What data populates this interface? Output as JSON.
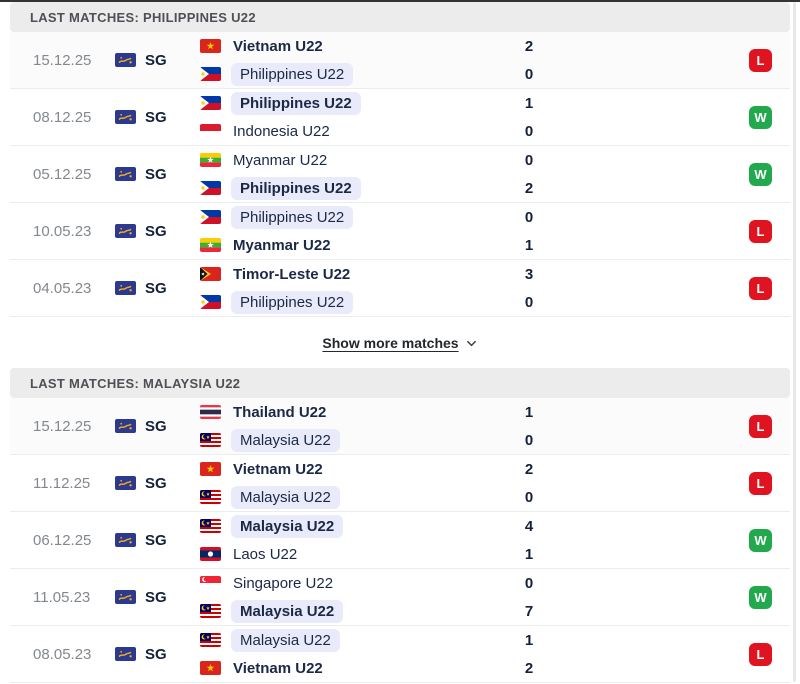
{
  "colors": {
    "win_badge": "#22a94e",
    "loss_badge": "#e01321",
    "highlight_pill": "#e9ebfa",
    "section_header_bg": "#ececec"
  },
  "sections": [
    {
      "title": "LAST MATCHES: PHILIPPINES U22",
      "show_more": "Show more matches",
      "matches": [
        {
          "date": "15.12.25",
          "competition": "SG",
          "home": {
            "team": "Vietnam U22",
            "flag": "vietnam",
            "score": "2",
            "bold": true,
            "highlight": false
          },
          "away": {
            "team": "Philippines U22",
            "flag": "philippines",
            "score": "0",
            "bold": false,
            "highlight": true
          },
          "result": "L"
        },
        {
          "date": "08.12.25",
          "competition": "SG",
          "home": {
            "team": "Philippines U22",
            "flag": "philippines",
            "score": "1",
            "bold": true,
            "highlight": true
          },
          "away": {
            "team": "Indonesia U22",
            "flag": "indonesia",
            "score": "0",
            "bold": false,
            "highlight": false
          },
          "result": "W"
        },
        {
          "date": "05.12.25",
          "competition": "SG",
          "home": {
            "team": "Myanmar U22",
            "flag": "myanmar",
            "score": "0",
            "bold": false,
            "highlight": false
          },
          "away": {
            "team": "Philippines U22",
            "flag": "philippines",
            "score": "2",
            "bold": true,
            "highlight": true
          },
          "result": "W"
        },
        {
          "date": "10.05.23",
          "competition": "SG",
          "home": {
            "team": "Philippines U22",
            "flag": "philippines",
            "score": "0",
            "bold": false,
            "highlight": true
          },
          "away": {
            "team": "Myanmar U22",
            "flag": "myanmar",
            "score": "1",
            "bold": true,
            "highlight": false
          },
          "result": "L"
        },
        {
          "date": "04.05.23",
          "competition": "SG",
          "home": {
            "team": "Timor-Leste U22",
            "flag": "timorleste",
            "score": "3",
            "bold": true,
            "highlight": false
          },
          "away": {
            "team": "Philippines U22",
            "flag": "philippines",
            "score": "0",
            "bold": false,
            "highlight": true
          },
          "result": "L"
        }
      ]
    },
    {
      "title": "LAST MATCHES: MALAYSIA U22",
      "matches": [
        {
          "date": "15.12.25",
          "competition": "SG",
          "home": {
            "team": "Thailand U22",
            "flag": "thailand",
            "score": "1",
            "bold": true,
            "highlight": false
          },
          "away": {
            "team": "Malaysia U22",
            "flag": "malaysia",
            "score": "0",
            "bold": false,
            "highlight": true
          },
          "result": "L"
        },
        {
          "date": "11.12.25",
          "competition": "SG",
          "home": {
            "team": "Vietnam U22",
            "flag": "vietnam",
            "score": "2",
            "bold": true,
            "highlight": false
          },
          "away": {
            "team": "Malaysia U22",
            "flag": "malaysia",
            "score": "0",
            "bold": false,
            "highlight": true
          },
          "result": "L"
        },
        {
          "date": "06.12.25",
          "competition": "SG",
          "home": {
            "team": "Malaysia U22",
            "flag": "malaysia",
            "score": "4",
            "bold": true,
            "highlight": true
          },
          "away": {
            "team": "Laos U22",
            "flag": "laos",
            "score": "1",
            "bold": false,
            "highlight": false
          },
          "result": "W"
        },
        {
          "date": "11.05.23",
          "competition": "SG",
          "home": {
            "team": "Singapore U22",
            "flag": "singapore",
            "score": "0",
            "bold": false,
            "highlight": false
          },
          "away": {
            "team": "Malaysia U22",
            "flag": "malaysia",
            "score": "7",
            "bold": true,
            "highlight": true
          },
          "result": "W"
        },
        {
          "date": "08.05.23",
          "competition": "SG",
          "home": {
            "team": "Malaysia U22",
            "flag": "malaysia",
            "score": "1",
            "bold": false,
            "highlight": true
          },
          "away": {
            "team": "Vietnam U22",
            "flag": "vietnam",
            "score": "2",
            "bold": true,
            "highlight": false
          },
          "result": "L"
        }
      ]
    }
  ]
}
